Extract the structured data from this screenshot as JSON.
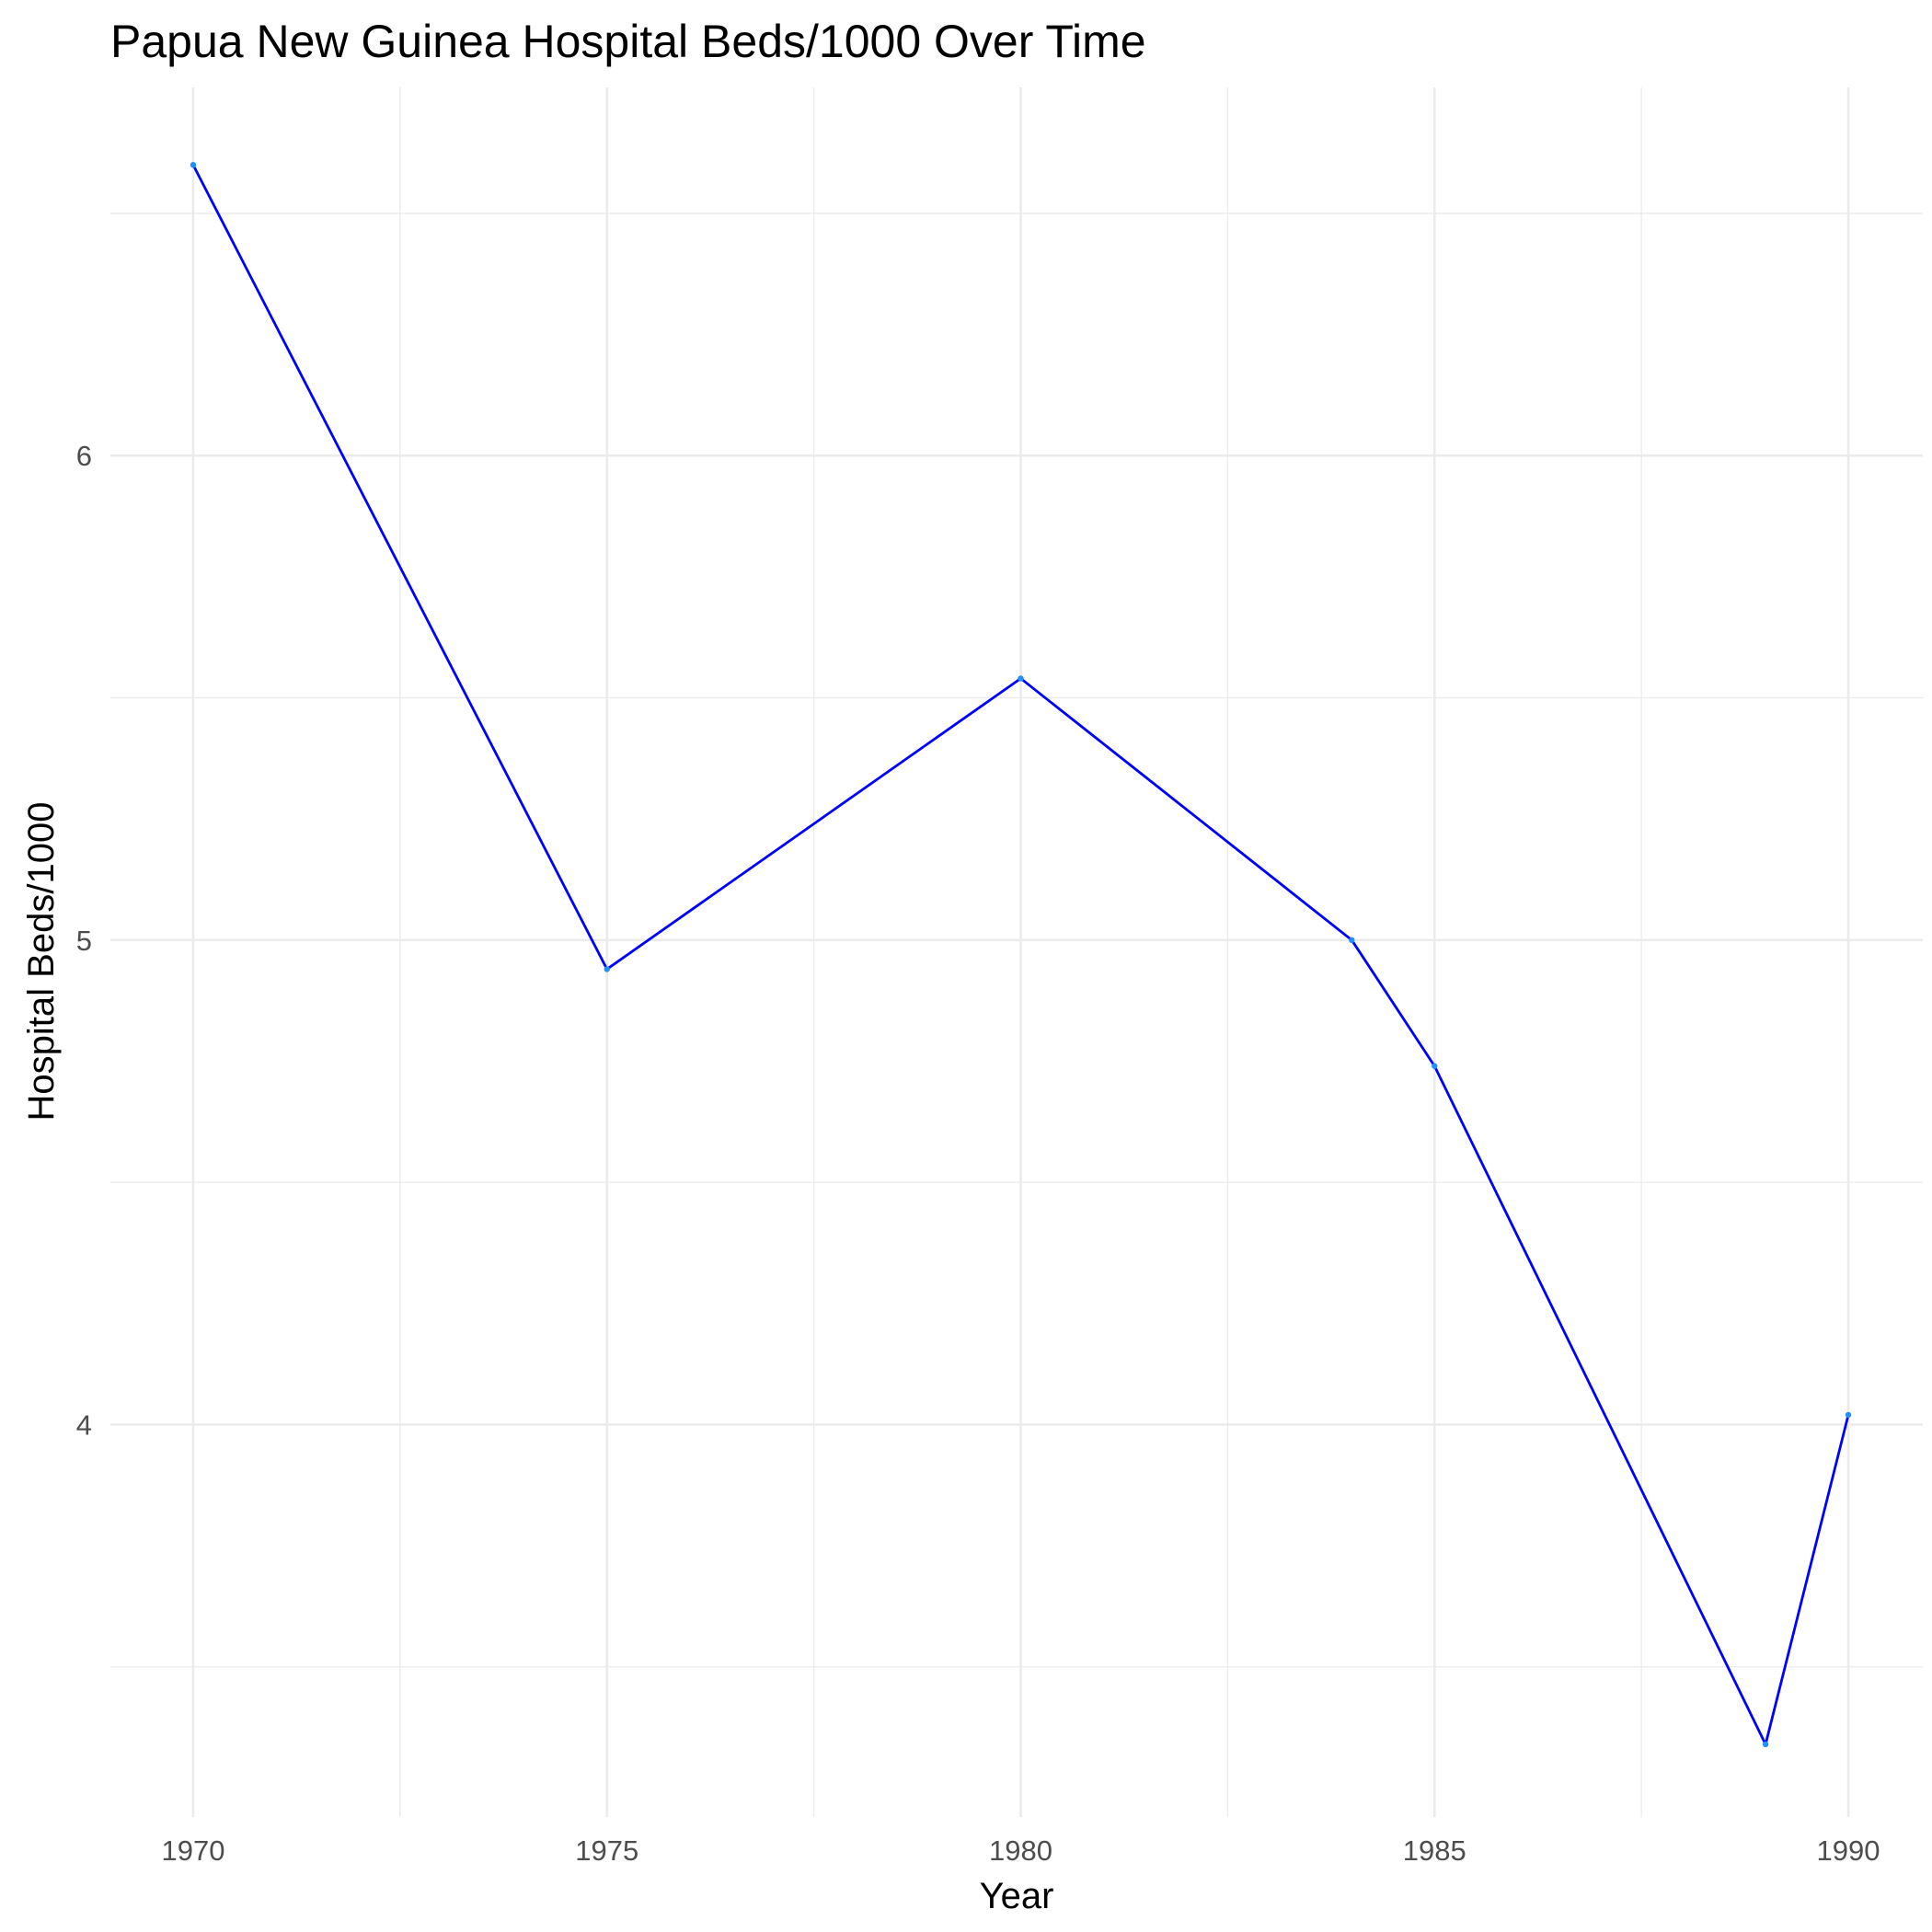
{
  "chart_data": {
    "type": "line",
    "title": "Papua New Guinea Hospital Beds/1000 Over Time",
    "xlabel": "Year",
    "ylabel": "Hospital Beds/1000",
    "x": [
      1970,
      1975,
      1980,
      1984,
      1985,
      1989,
      1990
    ],
    "series": [
      {
        "values": [
          6.6,
          4.94,
          5.54,
          5.0,
          4.74,
          3.34,
          4.02
        ]
      }
    ],
    "x_ticks": [
      1970,
      1975,
      1980,
      1985,
      1990
    ],
    "x_tick_labels": [
      "1970",
      "1975",
      "1980",
      "1985",
      "1990"
    ],
    "y_ticks": [
      4,
      5,
      6
    ],
    "y_tick_labels": [
      "4",
      "5",
      "6"
    ],
    "xlim": [
      1969,
      1990.9
    ],
    "ylim": [
      3.19,
      6.76
    ],
    "grid": true,
    "legend": "none",
    "line_color": "#0000ff",
    "point_color": "#1e90ff",
    "grid_color": "#ebebeb"
  }
}
